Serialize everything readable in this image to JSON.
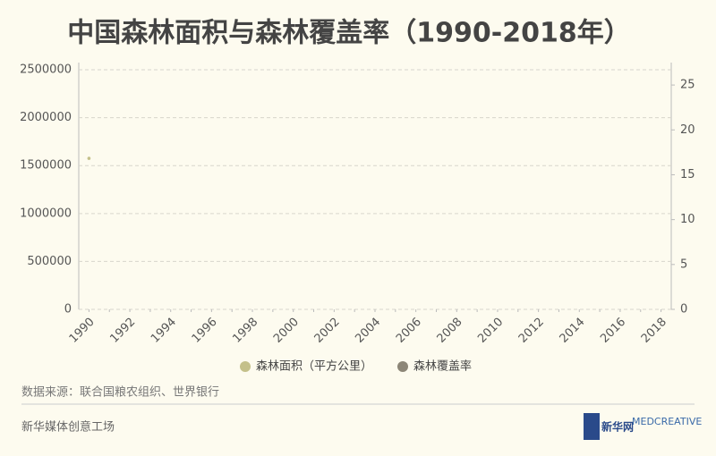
{
  "chart_data": {
    "type": "line",
    "title": "中国森林面积与森林覆盖率（1990-2018年）",
    "categories": [
      "1990",
      null,
      "1992",
      null,
      "1994",
      null,
      "1996",
      null,
      "1998",
      null,
      "2000",
      null,
      "2002",
      null,
      "2004",
      null,
      "2006",
      null,
      "2008",
      null,
      "2010",
      null,
      "2012",
      null,
      "2014",
      null,
      "2016",
      null,
      "2018"
    ],
    "series": [
      {
        "name": "森林面积（平方公里）",
        "color": "#c4c08a",
        "values": [
          1576000,
          null,
          null,
          null,
          null,
          null,
          null,
          null,
          null,
          null,
          null,
          null,
          null,
          null,
          null,
          null,
          null,
          null,
          null,
          null,
          null,
          null,
          null,
          null,
          null,
          null,
          null,
          null,
          null
        ]
      },
      {
        "name": "森林覆盖率",
        "color": "#8c8677",
        "axis": "y2",
        "values": [
          null,
          null,
          null,
          null,
          null,
          null,
          null,
          null,
          null,
          null,
          null,
          null,
          null,
          null,
          null,
          null,
          null,
          null,
          null,
          null,
          null,
          null,
          null,
          null,
          null,
          null,
          null,
          null,
          null
        ]
      }
    ],
    "ylim": [
      0,
      2575000
    ],
    "yticks": [
      0,
      500000,
      1000000,
      1500000,
      2000000,
      2500000
    ],
    "y2lim": [
      0,
      27.5
    ],
    "y2ticks": [
      0,
      5,
      10,
      15,
      20,
      25
    ],
    "grid": true,
    "source": "数据来源：联合国粮农组织、世界银行",
    "footer": "新华媒体创意工场",
    "logos": [
      "新华网",
      "MEDCREATIVE"
    ]
  }
}
